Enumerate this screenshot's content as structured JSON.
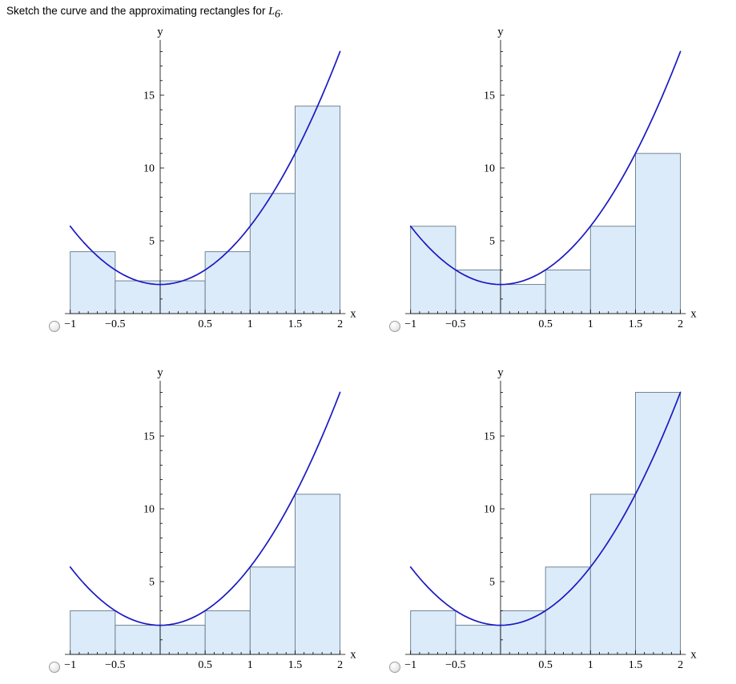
{
  "title": {
    "prefix": "Sketch the curve and the approximating rectangles for ",
    "symbol": "L",
    "subscript": "6",
    "suffix": "."
  },
  "colors": {
    "curve": "#1a1ac2",
    "rect_fill": "#dcebf9",
    "rect_stroke": "#64788a",
    "axis": "#000000",
    "radio_border": "#9e9e9e"
  },
  "options": [
    {
      "id": 1,
      "position": "top-left",
      "selected": false
    },
    {
      "id": 2,
      "position": "top-right",
      "selected": false
    },
    {
      "id": 3,
      "position": "bottom-left",
      "selected": false
    },
    {
      "id": 4,
      "position": "bottom-right",
      "selected": false
    }
  ],
  "chart_data": [
    {
      "type": "line+bar",
      "position": "top-left",
      "curve": {
        "expr": "y = 4x^2 + 2",
        "a": 4,
        "c": 2,
        "domain": [
          -1,
          2
        ]
      },
      "rectangles": [
        {
          "x0": -1.0,
          "x1": -0.5,
          "height": 4.25
        },
        {
          "x0": -0.5,
          "x1": 0.0,
          "height": 2.25
        },
        {
          "x0": 0.0,
          "x1": 0.5,
          "height": 2.25
        },
        {
          "x0": 0.5,
          "x1": 1.0,
          "height": 4.25
        },
        {
          "x0": 1.0,
          "x1": 1.5,
          "height": 8.25
        },
        {
          "x0": 1.5,
          "x1": 2.0,
          "height": 14.25
        }
      ],
      "xlabel": "x",
      "ylabel": "y",
      "x_ticks": [
        {
          "v": -1,
          "label": "−1"
        },
        {
          "v": -0.5,
          "label": "−0.5"
        },
        {
          "v": 0.5,
          "label": "0.5"
        },
        {
          "v": 1,
          "label": "1"
        },
        {
          "v": 1.5,
          "label": "1.5"
        },
        {
          "v": 2,
          "label": "2"
        }
      ],
      "y_ticks": [
        {
          "v": 5,
          "label": "5"
        },
        {
          "v": 10,
          "label": "10"
        },
        {
          "v": 15,
          "label": "15"
        }
      ],
      "x_minor_step": 0.1,
      "y_minor_step": 1,
      "xlim": [
        -1.06,
        2.06
      ],
      "ylim": [
        0,
        18.8
      ]
    },
    {
      "type": "line+bar",
      "position": "top-right",
      "curve": {
        "expr": "y = 4x^2 + 2",
        "a": 4,
        "c": 2,
        "domain": [
          -1,
          2
        ]
      },
      "rectangles": [
        {
          "x0": -1.0,
          "x1": -0.5,
          "height": 6
        },
        {
          "x0": -0.5,
          "x1": 0.0,
          "height": 3
        },
        {
          "x0": 0.0,
          "x1": 0.5,
          "height": 2
        },
        {
          "x0": 0.5,
          "x1": 1.0,
          "height": 3
        },
        {
          "x0": 1.0,
          "x1": 1.5,
          "height": 6
        },
        {
          "x0": 1.5,
          "x1": 2.0,
          "height": 11
        }
      ],
      "xlabel": "x",
      "ylabel": "y",
      "x_ticks": [
        {
          "v": -1,
          "label": "−1"
        },
        {
          "v": -0.5,
          "label": "−0.5"
        },
        {
          "v": 0.5,
          "label": "0.5"
        },
        {
          "v": 1,
          "label": "1"
        },
        {
          "v": 1.5,
          "label": "1.5"
        },
        {
          "v": 2,
          "label": "2"
        }
      ],
      "y_ticks": [
        {
          "v": 5,
          "label": "5"
        },
        {
          "v": 10,
          "label": "10"
        },
        {
          "v": 15,
          "label": "15"
        }
      ],
      "x_minor_step": 0.1,
      "y_minor_step": 1,
      "xlim": [
        -1.06,
        2.06
      ],
      "ylim": [
        0,
        18.8
      ]
    },
    {
      "type": "line+bar",
      "position": "bottom-left",
      "curve": {
        "expr": "y = 4x^2 + 2",
        "a": 4,
        "c": 2,
        "domain": [
          -1,
          2
        ]
      },
      "rectangles": [
        {
          "x0": -1.0,
          "x1": -0.5,
          "height": 3
        },
        {
          "x0": -0.5,
          "x1": 0.0,
          "height": 2
        },
        {
          "x0": 0.0,
          "x1": 0.5,
          "height": 2
        },
        {
          "x0": 0.5,
          "x1": 1.0,
          "height": 3
        },
        {
          "x0": 1.0,
          "x1": 1.5,
          "height": 6
        },
        {
          "x0": 1.5,
          "x1": 2.0,
          "height": 11
        }
      ],
      "xlabel": "x",
      "ylabel": "y",
      "x_ticks": [
        {
          "v": -1,
          "label": "−1"
        },
        {
          "v": -0.5,
          "label": "−0.5"
        },
        {
          "v": 0.5,
          "label": "0.5"
        },
        {
          "v": 1,
          "label": "1"
        },
        {
          "v": 1.5,
          "label": "1.5"
        },
        {
          "v": 2,
          "label": "2"
        }
      ],
      "y_ticks": [
        {
          "v": 5,
          "label": "5"
        },
        {
          "v": 10,
          "label": "10"
        },
        {
          "v": 15,
          "label": "15"
        }
      ],
      "x_minor_step": 0.1,
      "y_minor_step": 1,
      "xlim": [
        -1.06,
        2.06
      ],
      "ylim": [
        0,
        18.8
      ]
    },
    {
      "type": "line+bar",
      "position": "bottom-right",
      "curve": {
        "expr": "y = 4x^2 + 2",
        "a": 4,
        "c": 2,
        "domain": [
          -1,
          2
        ]
      },
      "rectangles": [
        {
          "x0": -1.0,
          "x1": -0.5,
          "height": 3
        },
        {
          "x0": -0.5,
          "x1": 0.0,
          "height": 2
        },
        {
          "x0": 0.0,
          "x1": 0.5,
          "height": 3
        },
        {
          "x0": 0.5,
          "x1": 1.0,
          "height": 6
        },
        {
          "x0": 1.0,
          "x1": 1.5,
          "height": 11
        },
        {
          "x0": 1.5,
          "x1": 2.0,
          "height": 18
        }
      ],
      "xlabel": "x",
      "ylabel": "y",
      "x_ticks": [
        {
          "v": -1,
          "label": "−1"
        },
        {
          "v": -0.5,
          "label": "−0.5"
        },
        {
          "v": 0.5,
          "label": "0.5"
        },
        {
          "v": 1,
          "label": "1"
        },
        {
          "v": 1.5,
          "label": "1.5"
        },
        {
          "v": 2,
          "label": "2"
        }
      ],
      "y_ticks": [
        {
          "v": 5,
          "label": "5"
        },
        {
          "v": 10,
          "label": "10"
        },
        {
          "v": 15,
          "label": "15"
        }
      ],
      "x_minor_step": 0.1,
      "y_minor_step": 1,
      "xlim": [
        -1.06,
        2.06
      ],
      "ylim": [
        0,
        18.8
      ]
    }
  ]
}
